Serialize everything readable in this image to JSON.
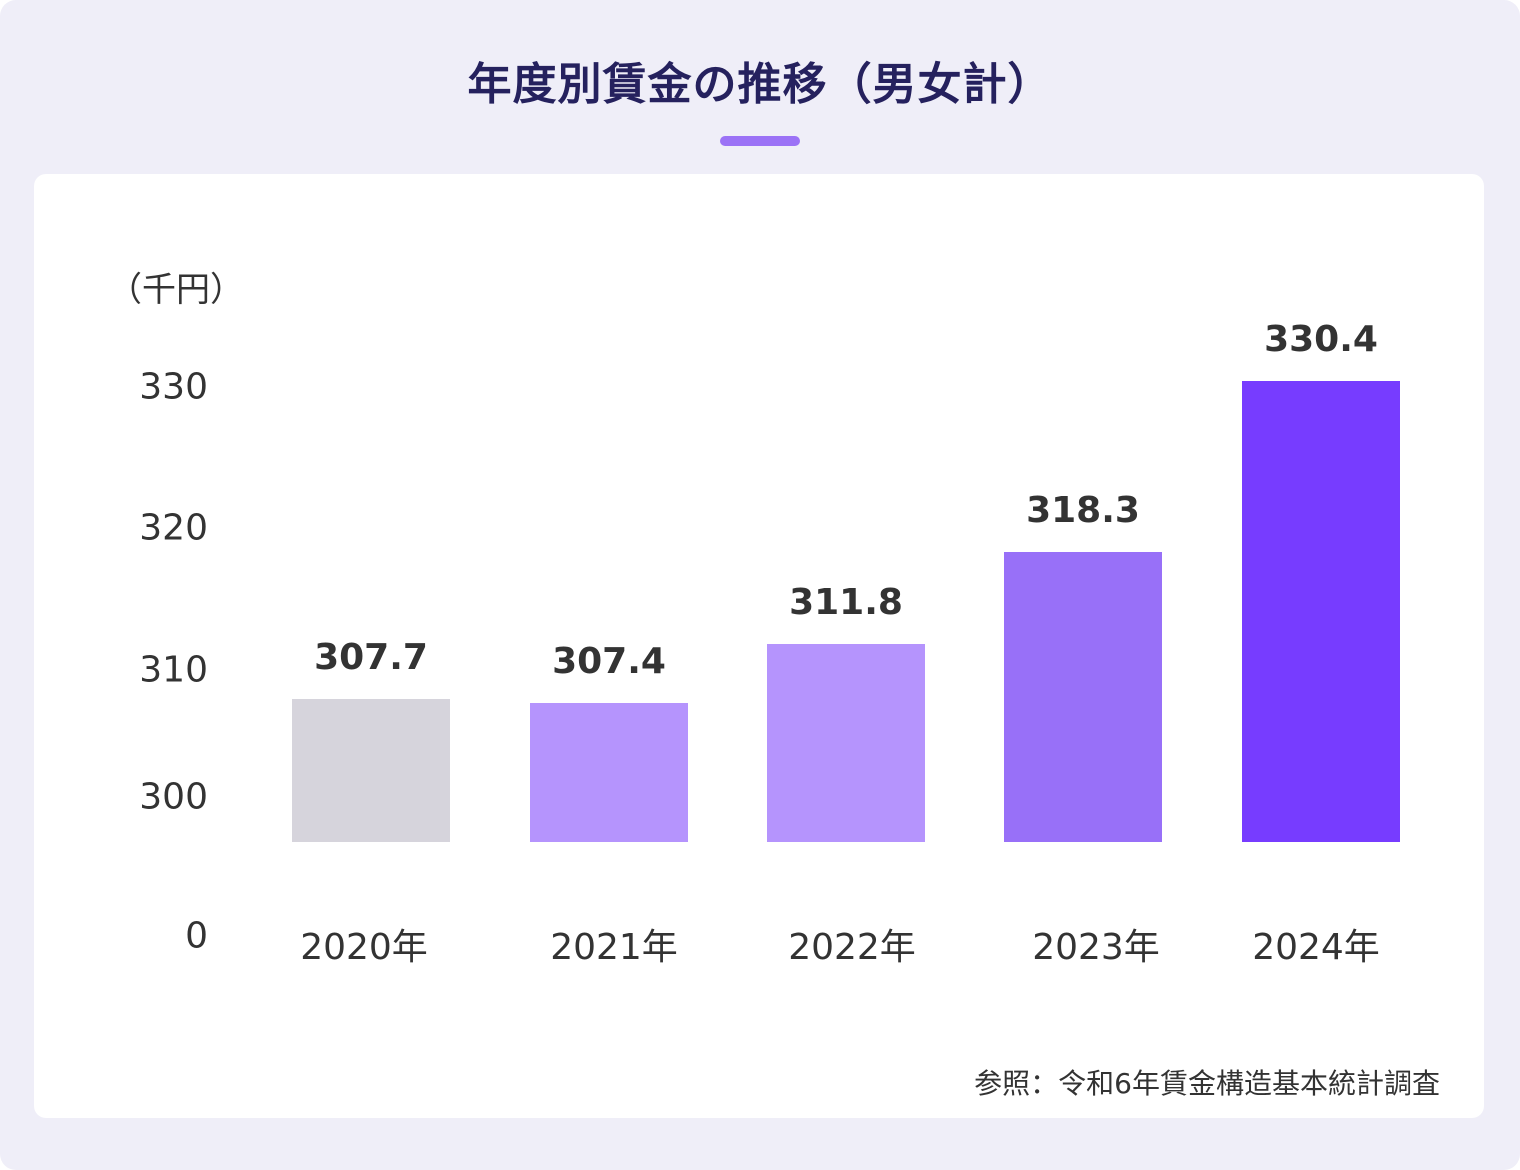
{
  "title": "年度別賃金の推移（男女計）",
  "source": "参照：令和6年賃金構造基本統計調査",
  "chart_data": {
    "type": "bar",
    "title": "年度別賃金の推移（男女計）",
    "ylabel": "（千円）",
    "categories": [
      "2020年",
      "2021年",
      "2022年",
      "2023年",
      "2024年"
    ],
    "values": [
      307.7,
      307.4,
      311.8,
      318.3,
      330.4
    ],
    "value_labels": [
      "307.7",
      "307.4",
      "311.8",
      "318.3",
      "330.4"
    ],
    "colors": [
      "#d6d4dc",
      "#b594fd",
      "#b594fd",
      "#9870f8",
      "#773cff"
    ],
    "y_ticks": [
      "0",
      "300",
      "310",
      "320",
      "330"
    ],
    "y_axis_broken": true,
    "grid": false,
    "legend": "none"
  }
}
